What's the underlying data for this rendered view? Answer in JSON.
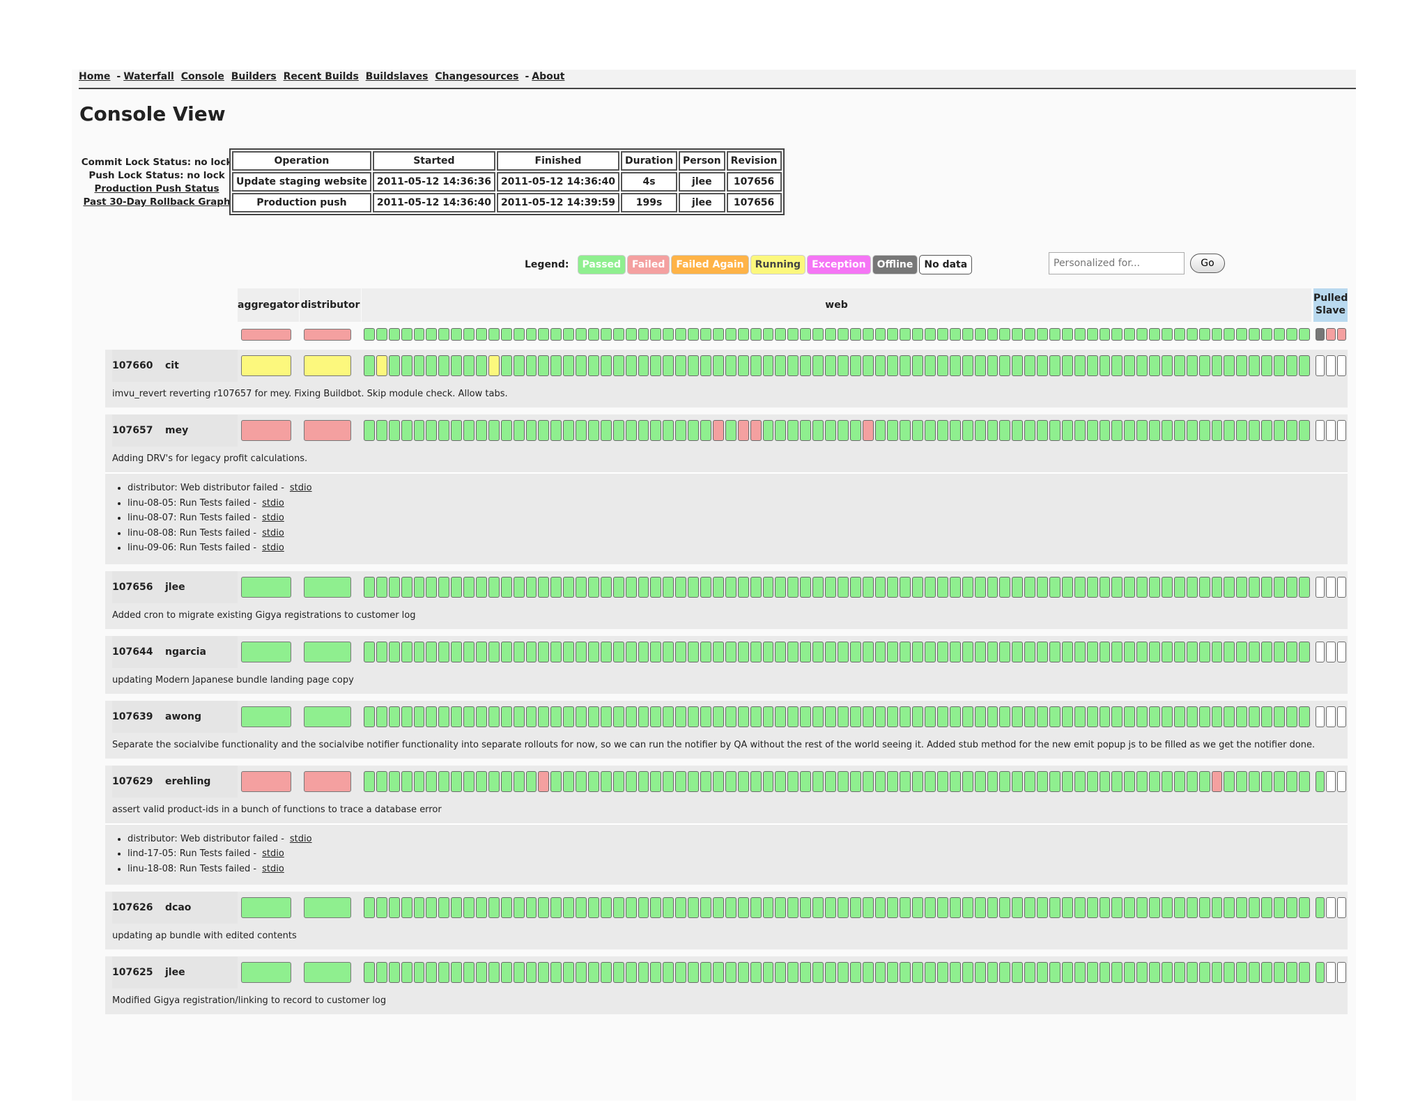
{
  "nav": {
    "home": "Home",
    "waterfall": "Waterfall",
    "console": "Console",
    "builders": "Builders",
    "recent_builds": "Recent Builds",
    "buildslaves": "Buildslaves",
    "changesources": "Changesources",
    "about": "About",
    "separator": "-"
  },
  "page_title": "Console View",
  "locks": {
    "commit": "Commit Lock Status: no lock",
    "push": "Push Lock Status: no lock",
    "production_push_link": "Production Push Status",
    "rollback_link": "Past 30-Day Rollback Graph"
  },
  "operations": {
    "headers": [
      "Operation",
      "Started",
      "Finished",
      "Duration",
      "Person",
      "Revision"
    ],
    "rows": [
      [
        "Update staging website",
        "2011-05-12 14:36:36",
        "2011-05-12 14:36:40",
        "4s",
        "jlee",
        "107656"
      ],
      [
        "Production push",
        "2011-05-12 14:36:40",
        "2011-05-12 14:39:59",
        "199s",
        "jlee",
        "107656"
      ]
    ]
  },
  "legend": {
    "label": "Legend:",
    "items": [
      {
        "label": "Passed",
        "cls": "c-pass"
      },
      {
        "label": "Failed",
        "cls": "c-fail"
      },
      {
        "label": "Failed Again",
        "cls": "c-again"
      },
      {
        "label": "Running",
        "cls": "c-run"
      },
      {
        "label": "Exception",
        "cls": "c-exc"
      },
      {
        "label": "Offline",
        "cls": "c-off"
      },
      {
        "label": "No data",
        "cls": "c-nodata"
      }
    ]
  },
  "personalize": {
    "placeholder": "Personalized for...",
    "go_label": "Go"
  },
  "builders": {
    "aggregator": "aggregator",
    "distributor": "distributor",
    "web": "web",
    "pulled_slave": "Pulled Slave",
    "web_count": 76,
    "status_row": {
      "aggregator": "r",
      "distributor": "r",
      "web_default": "g",
      "web_exceptions": {},
      "pulled": [
        "k",
        "r",
        "r"
      ]
    }
  },
  "revisions": [
    {
      "rev": "107660",
      "who": "cit",
      "aggregator": "y",
      "distributor": "y",
      "web_default": "g",
      "web_exceptions": {
        "1": "y",
        "10": "y"
      },
      "pulled": [
        "w",
        "w",
        "w"
      ],
      "comment": "imvu_revert reverting r107657 for mey. Fixing Buildbot. Skip module check. Allow tabs.",
      "failures": []
    },
    {
      "rev": "107657",
      "who": "mey",
      "aggregator": "r",
      "distributor": "r",
      "web_default": "g",
      "web_exceptions": {
        "28": "r",
        "30": "r",
        "31": "r",
        "40": "r"
      },
      "pulled": [
        "w",
        "w",
        "w"
      ],
      "comment": "Adding DRV's for legacy profit calculations.",
      "failures": [
        {
          "text": "distributor: Web distributor failed -",
          "link": "stdio"
        },
        {
          "text": "linu-08-05: Run Tests failed -",
          "link": "stdio"
        },
        {
          "text": "linu-08-07: Run Tests failed -",
          "link": "stdio"
        },
        {
          "text": "linu-08-08: Run Tests failed -",
          "link": "stdio"
        },
        {
          "text": "linu-09-06: Run Tests failed -",
          "link": "stdio"
        }
      ]
    },
    {
      "rev": "107656",
      "who": "jlee",
      "aggregator": "g",
      "distributor": "g",
      "web_default": "g",
      "web_exceptions": {},
      "pulled": [
        "w",
        "w",
        "w"
      ],
      "comment": "Added cron to migrate existing Gigya registrations to customer log",
      "failures": []
    },
    {
      "rev": "107644",
      "who": "ngarcia",
      "aggregator": "g",
      "distributor": "g",
      "web_default": "g",
      "web_exceptions": {},
      "pulled": [
        "w",
        "w",
        "w"
      ],
      "comment": "updating Modern Japanese  bundle landing page copy",
      "failures": []
    },
    {
      "rev": "107639",
      "who": "awong",
      "aggregator": "g",
      "distributor": "g",
      "web_default": "g",
      "web_exceptions": {},
      "pulled": [
        "w",
        "w",
        "w"
      ],
      "comment": "Separate the socialvibe functionality and the socialvibe notifier functionality into separate rollouts for now, so we can run the notifier by QA without the rest of the world seeing it.  Added stub method for the new emit popup js to be filled as we get the notifier done.",
      "failures": []
    },
    {
      "rev": "107629",
      "who": "erehling",
      "aggregator": "r",
      "distributor": "r",
      "web_default": "g",
      "web_exceptions": {
        "14": "r",
        "68": "r"
      },
      "pulled": [
        "g",
        "w",
        "w"
      ],
      "comment": "assert valid product-ids in a bunch of functions to trace a database error",
      "failures": [
        {
          "text": "distributor: Web distributor failed -",
          "link": "stdio"
        },
        {
          "text": "lind-17-05: Run Tests failed -",
          "link": "stdio"
        },
        {
          "text": "linu-18-08: Run Tests failed -",
          "link": "stdio"
        }
      ]
    },
    {
      "rev": "107626",
      "who": "dcao",
      "aggregator": "g",
      "distributor": "g",
      "web_default": "g",
      "web_exceptions": {},
      "pulled": [
        "g",
        "w",
        "w"
      ],
      "comment": "updating ap bundle with edited contents",
      "failures": []
    },
    {
      "rev": "107625",
      "who": "jlee",
      "aggregator": "g",
      "distributor": "g",
      "web_default": "g",
      "web_exceptions": {},
      "pulled": [
        "g",
        "w",
        "w"
      ],
      "comment": "Modified Gigya registration/linking to record to customer log",
      "failures": []
    }
  ]
}
